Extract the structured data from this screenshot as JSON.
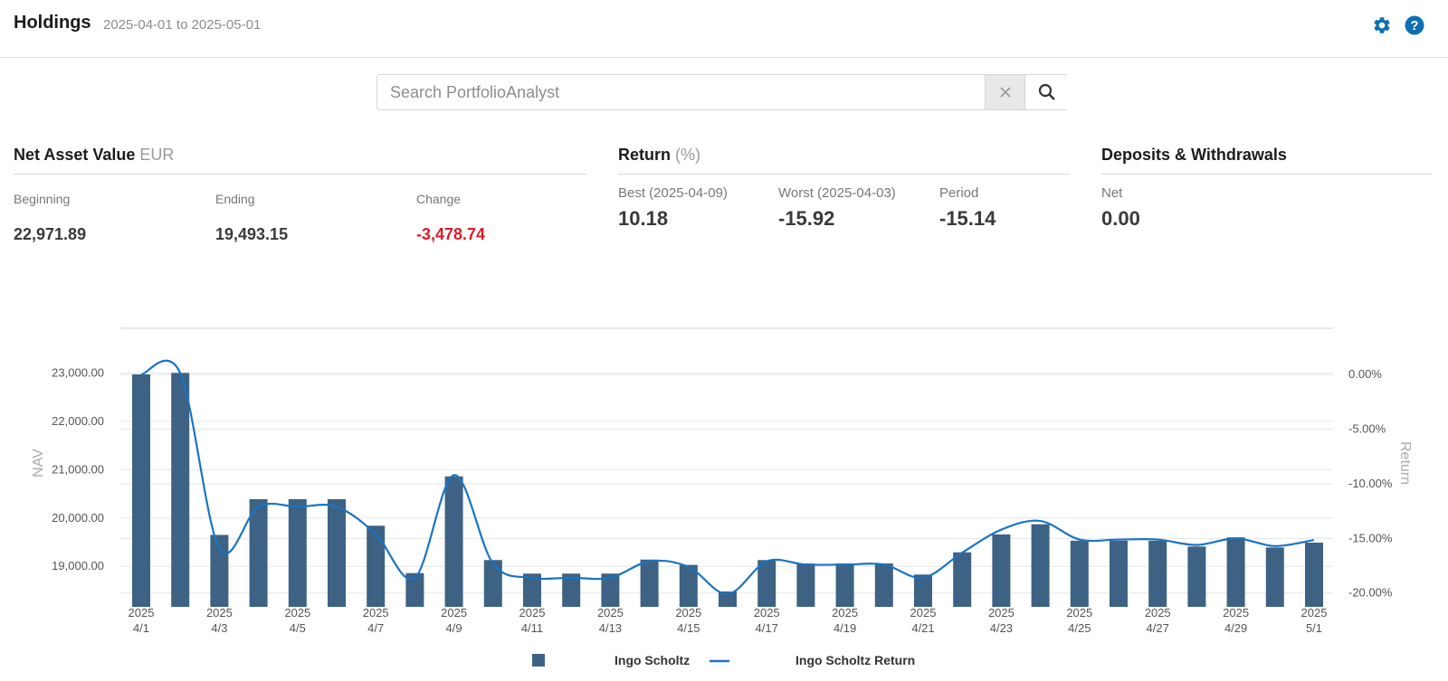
{
  "header": {
    "title": "Holdings",
    "date_range": "2025-04-01 to 2025-05-01",
    "icons": [
      "gear-icon",
      "help-icon"
    ],
    "icon_color": "#0f6fb0"
  },
  "search": {
    "placeholder": "Search PortfolioAnalyst",
    "value": ""
  },
  "nav": {
    "title": "Net Asset Value",
    "currency": "EUR",
    "beginning_label": "Beginning",
    "beginning_value": "22,971.89",
    "ending_label": "Ending",
    "ending_value": "19,493.15",
    "change_label": "Change",
    "change_value": "-3,478.74"
  },
  "returns": {
    "title": "Return",
    "unit": "(%)",
    "best_label": "Best (2025-04-09)",
    "best_value": "10.18",
    "worst_label": "Worst (2025-04-03)",
    "worst_value": "-15.92",
    "period_label": "Period",
    "period_value": "-15.14"
  },
  "deposits": {
    "title": "Deposits & Withdrawals",
    "net_label": "Net",
    "net_value": "0.00"
  },
  "chart_data": {
    "type": "bar",
    "categories": [
      "4/1",
      "4/2",
      "4/3",
      "4/4",
      "4/5",
      "4/6",
      "4/7",
      "4/8",
      "4/9",
      "4/10",
      "4/11",
      "4/12",
      "4/13",
      "4/14",
      "4/15",
      "4/16",
      "4/17",
      "4/18",
      "4/19",
      "4/20",
      "4/21",
      "4/22",
      "4/23",
      "4/24",
      "4/25",
      "4/26",
      "4/27",
      "4/28",
      "4/29",
      "4/30",
      "5/1"
    ],
    "x_tick_labels": [
      [
        "2025",
        "4/1"
      ],
      [
        "2025",
        "4/3"
      ],
      [
        "2025",
        "4/5"
      ],
      [
        "2025",
        "4/7"
      ],
      [
        "2025",
        "4/9"
      ],
      [
        "2025",
        "4/11"
      ],
      [
        "2025",
        "4/13"
      ],
      [
        "2025",
        "4/15"
      ],
      [
        "2025",
        "4/17"
      ],
      [
        "2025",
        "4/19"
      ],
      [
        "2025",
        "4/21"
      ],
      [
        "2025",
        "4/23"
      ],
      [
        "2025",
        "4/25"
      ],
      [
        "2025",
        "4/27"
      ],
      [
        "2025",
        "4/29"
      ],
      [
        "2025",
        "5/1"
      ]
    ],
    "x_tick_every": 2,
    "series": [
      {
        "name": "Ingo Scholtz",
        "kind": "bar",
        "axis": "left",
        "color": "#3d6283",
        "values": [
          22970,
          23000,
          19650,
          20390,
          20390,
          20390,
          19840,
          18860,
          20860,
          19130,
          18850,
          18850,
          18850,
          19140,
          19030,
          18480,
          19130,
          19060,
          19060,
          19060,
          18830,
          19290,
          19660,
          19870,
          19530,
          19530,
          19530,
          19410,
          19600,
          19390,
          19490
        ]
      },
      {
        "name": "Ingo Scholtz Return",
        "kind": "line",
        "axis": "right",
        "color": "#1a74c4",
        "values": [
          0.0,
          0.13,
          -15.92,
          -12.1,
          -12.1,
          -12.1,
          -14.6,
          -18.6,
          -9.2,
          -17.3,
          -18.6,
          -18.6,
          -18.6,
          -17.1,
          -17.6,
          -20.1,
          -17.1,
          -17.4,
          -17.4,
          -17.4,
          -18.6,
          -16.3,
          -14.2,
          -13.4,
          -15.1,
          -15.1,
          -15.1,
          -15.6,
          -15.0,
          -15.7,
          -15.14
        ]
      }
    ],
    "y_left": {
      "label": "NAV",
      "ticks": [
        "19,000.00",
        "20,000.00",
        "21,000.00",
        "22,000.00",
        "23,000.00"
      ],
      "tick_values": [
        19000,
        20000,
        21000,
        22000,
        23000
      ],
      "range": [
        18200,
        23100
      ]
    },
    "y_right": {
      "label": "Return",
      "ticks": [
        "-20.00%",
        "-15.00%",
        "-10.00%",
        "-5.00%",
        "0.00%"
      ],
      "tick_values": [
        -20,
        -15,
        -10,
        -5,
        0
      ],
      "range": [
        -21.1,
        0.6
      ]
    },
    "grid": true,
    "legend_position": "bottom-center"
  }
}
